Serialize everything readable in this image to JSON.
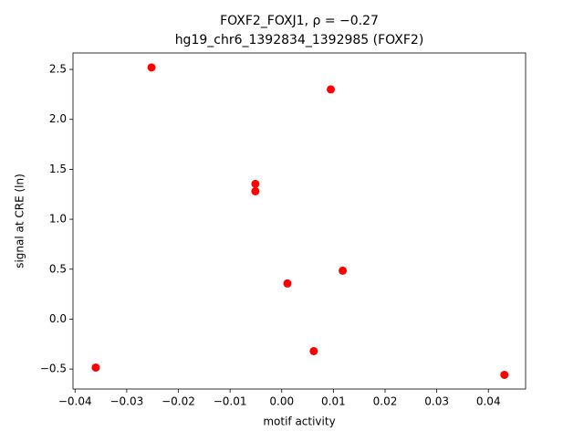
{
  "chart_data": {
    "type": "scatter",
    "title": "FOXF2_FOXJ1, ρ = −0.27",
    "subtitle": "hg19_chr6_1392834_1392985 (FOXF2)",
    "xlabel": "motif activity",
    "ylabel": "signal at CRE (ln)",
    "color": "#ff0000",
    "x": [
      -0.0252,
      0.0095,
      -0.0051,
      -0.0051,
      0.0011,
      0.0118,
      0.0062,
      -0.036,
      0.0431
    ],
    "values": [
      2.52,
      2.3,
      1.354,
      1.28,
      0.357,
      0.485,
      -0.32,
      -0.485,
      -0.558
    ],
    "xlim": [
      -0.0404,
      0.0472
    ],
    "ylim": [
      -0.7,
      2.665
    ],
    "xticks": [
      {
        "value": -0.04,
        "label": "−0.04"
      },
      {
        "value": -0.03,
        "label": "−0.03"
      },
      {
        "value": -0.02,
        "label": "−0.02"
      },
      {
        "value": -0.01,
        "label": "−0.01"
      },
      {
        "value": 0,
        "label": "0.00"
      },
      0.01,
      0.02,
      0.03,
      0.04
    ],
    "yticks": [
      {
        "value": -0.5,
        "label": "−0.5"
      },
      {
        "value": 0,
        "label": "0.0"
      },
      0.5,
      {
        "value": 1,
        "label": "1.0"
      },
      1.5,
      {
        "value": 2,
        "label": "2.0"
      },
      2.5
    ],
    "grid": false
  }
}
